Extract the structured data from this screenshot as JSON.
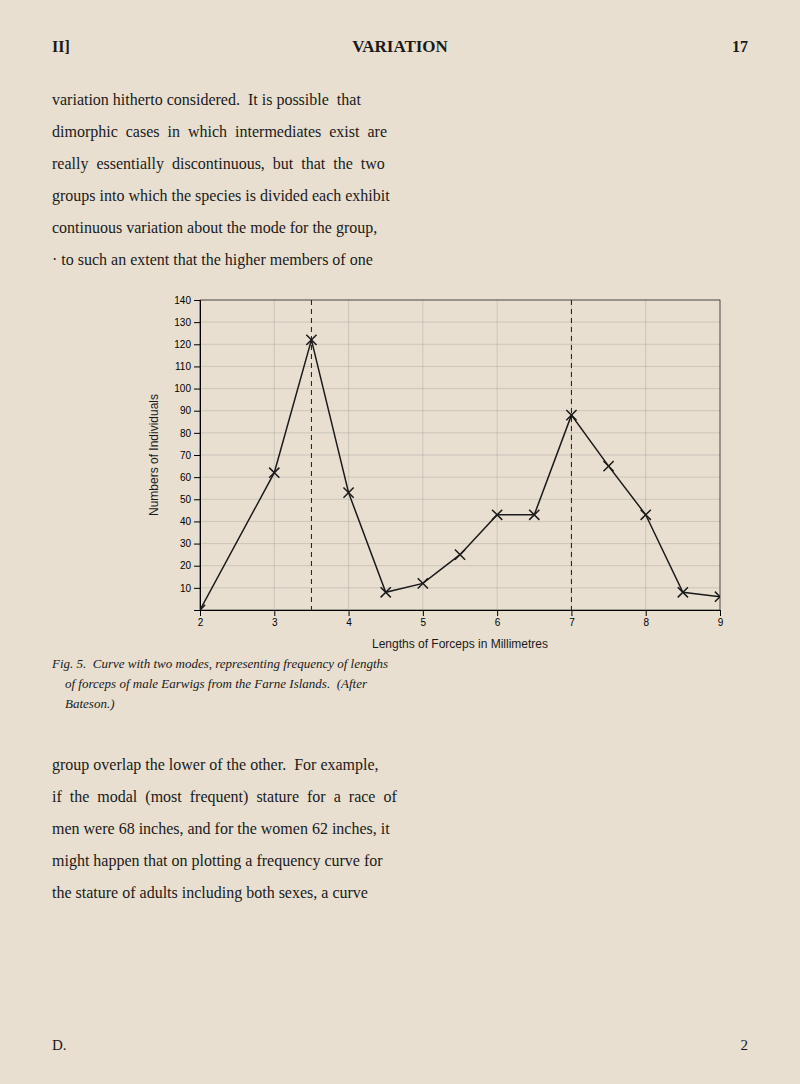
{
  "header": {
    "left": "II]",
    "center": "VARIATION",
    "right": "17"
  },
  "paragraphs": [
    [
      "variation hitherto considered.  It is possible  that",
      "dimorphic  cases  in  which  intermediates  exist  are",
      "really  essentially  discontinuous,  but  that  the  two",
      "groups into which the species is divided each exhibit",
      "continuous variation about the mode for the group,",
      "· to such an extent that the higher members of one"
    ],
    [
      "group overlap the lower of the other.  For example,",
      "if  the  modal  (most  frequent)  stature  for  a  race  of",
      "men were 68 inches, and for the women 62 inches, it",
      "might happen that on plotting a frequency curve for",
      "the stature of adults including both sexes, a curve"
    ]
  ],
  "caption": [
    "Fig. 5.  Curve with two modes, representing frequency of lengths",
    "    of forceps of male Earwigs from the Farne Islands.  (After",
    "    Bateson.)"
  ],
  "footer": {
    "left": "D.",
    "right": "2"
  },
  "chart_data": {
    "type": "line",
    "x": [
      2,
      3,
      3.5,
      4,
      4.5,
      5,
      5.5,
      6,
      6.5,
      7,
      7.5,
      8,
      8.5,
      9
    ],
    "values": [
      0,
      62,
      122,
      53,
      8,
      12,
      25,
      43,
      43,
      88,
      65,
      43,
      8,
      6
    ],
    "vlines": [
      3.5,
      7
    ],
    "xlabel": "Lengths of Forceps in Millimetres",
    "ylabel": "Numbers of Individuals",
    "xlim": [
      2,
      9
    ],
    "ylim": [
      0,
      140
    ],
    "xticks": [
      2,
      3,
      4,
      5,
      6,
      7,
      8,
      9
    ],
    "yticks": [
      10,
      20,
      30,
      40,
      50,
      60,
      70,
      80,
      90,
      100,
      110,
      120,
      130,
      140
    ],
    "grid": true,
    "color": "#1a1a1a",
    "marker": "x"
  }
}
